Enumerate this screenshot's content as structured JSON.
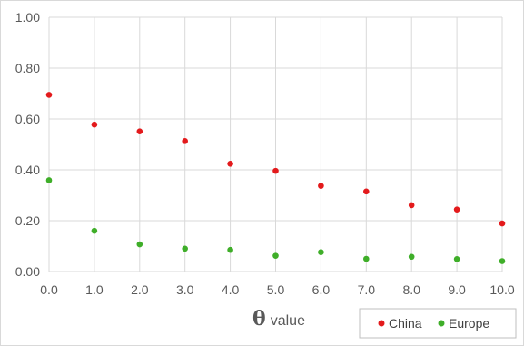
{
  "chart_data": {
    "type": "scatter",
    "xlabel_symbol": "θ",
    "xlabel_text": "value",
    "xlim": [
      0,
      10
    ],
    "ylim": [
      0,
      1
    ],
    "x_ticks": [
      "0.0",
      "1.0",
      "2.0",
      "3.0",
      "4.0",
      "5.0",
      "6.0",
      "7.0",
      "8.0",
      "9.0",
      "10.0"
    ],
    "y_ticks": [
      "0.00",
      "0.20",
      "0.40",
      "0.60",
      "0.80",
      "1.00"
    ],
    "grid": "both",
    "legend_position": "bottom-right",
    "x": [
      0,
      1,
      2,
      3,
      4,
      5,
      6,
      7,
      8,
      9,
      10
    ],
    "series": [
      {
        "name": "China",
        "color": "#e31a1c",
        "values": [
          0.695,
          0.578,
          0.551,
          0.513,
          0.424,
          0.396,
          0.337,
          0.315,
          0.261,
          0.244,
          0.189
        ]
      },
      {
        "name": "Europe",
        "color": "#3fae29",
        "values": [
          0.359,
          0.16,
          0.107,
          0.09,
          0.085,
          0.062,
          0.076,
          0.05,
          0.058,
          0.049,
          0.041
        ]
      }
    ]
  }
}
